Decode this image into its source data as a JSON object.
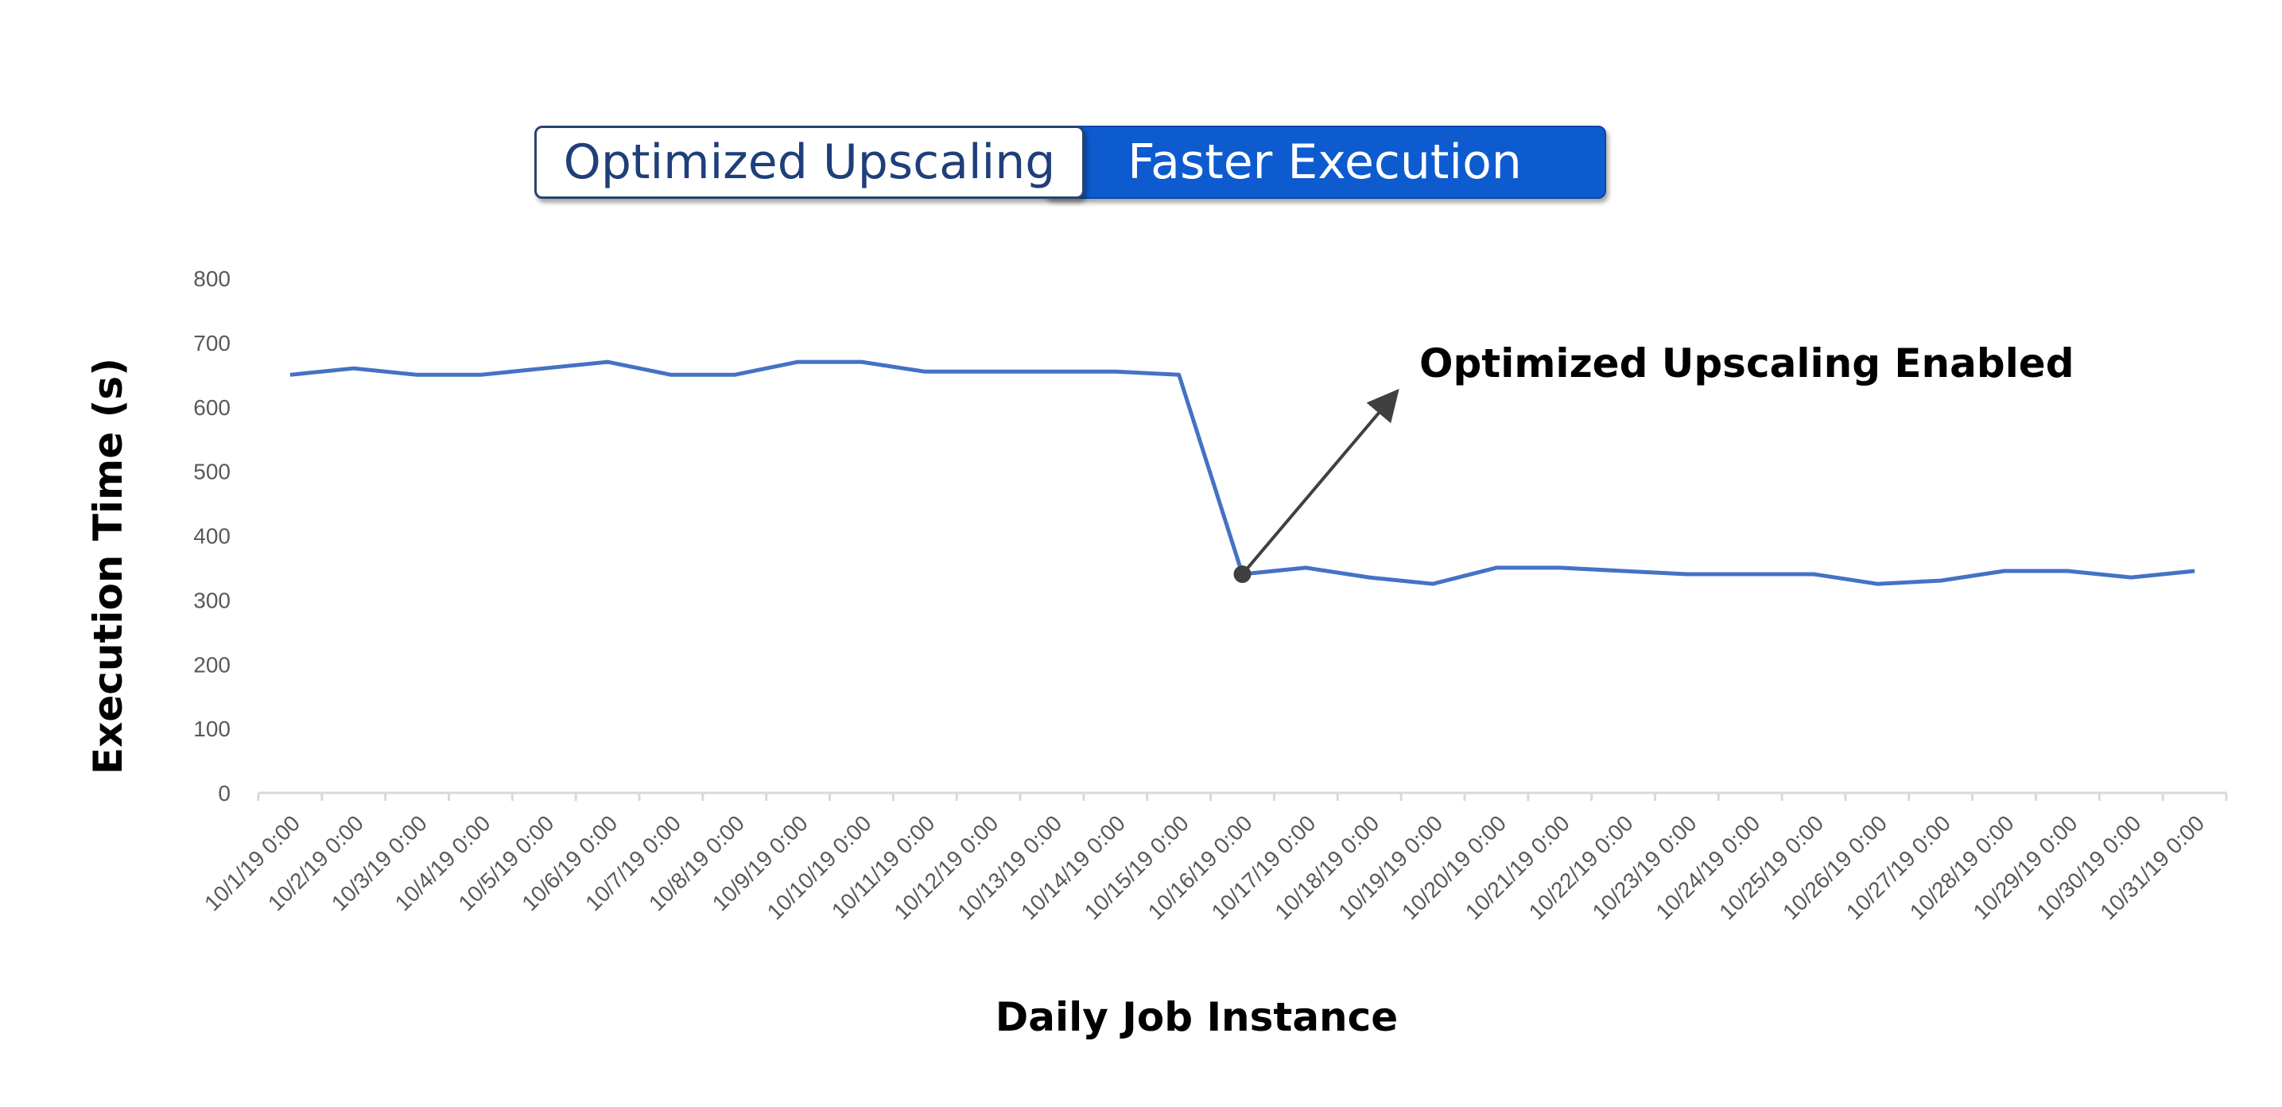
{
  "toggle": {
    "left_label": "Optimized Upscaling",
    "right_label": "Faster Execution"
  },
  "chart_data": {
    "type": "line",
    "title": "",
    "xlabel": "Daily Job Instance",
    "ylabel": "Execution Time (s)",
    "ylim": [
      0,
      800
    ],
    "yticks": [
      "0",
      "100",
      "200",
      "300",
      "400",
      "500",
      "600",
      "700",
      "800"
    ],
    "grid": false,
    "line_color": "#4472c4",
    "categories": [
      "10/1/19 0:00",
      "10/2/19 0:00",
      "10/3/19 0:00",
      "10/4/19 0:00",
      "10/5/19 0:00",
      "10/6/19 0:00",
      "10/7/19 0:00",
      "10/8/19 0:00",
      "10/9/19 0:00",
      "10/10/19 0:00",
      "10/11/19 0:00",
      "10/12/19 0:00",
      "10/13/19 0:00",
      "10/14/19 0:00",
      "10/15/19 0:00",
      "10/16/19 0:00",
      "10/17/19 0:00",
      "10/18/19 0:00",
      "10/19/19 0:00",
      "10/20/19 0:00",
      "10/21/19 0:00",
      "10/22/19 0:00",
      "10/23/19 0:00",
      "10/24/19 0:00",
      "10/25/19 0:00",
      "10/26/19 0:00",
      "10/27/19 0:00",
      "10/28/19 0:00",
      "10/29/19 0:00",
      "10/30/19 0:00",
      "10/31/19 0:00"
    ],
    "series": [
      {
        "values": [
          650,
          660,
          650,
          650,
          660,
          670,
          650,
          650,
          670,
          670,
          655,
          655,
          655,
          655,
          650,
          340,
          350,
          335,
          325,
          350,
          350,
          345,
          340,
          340,
          340,
          325,
          330,
          345,
          345,
          335,
          345
        ]
      }
    ],
    "annotation": {
      "text": "Optimized Upscaling Enabled",
      "category": "10/16/19 0:00",
      "value": 340
    }
  }
}
